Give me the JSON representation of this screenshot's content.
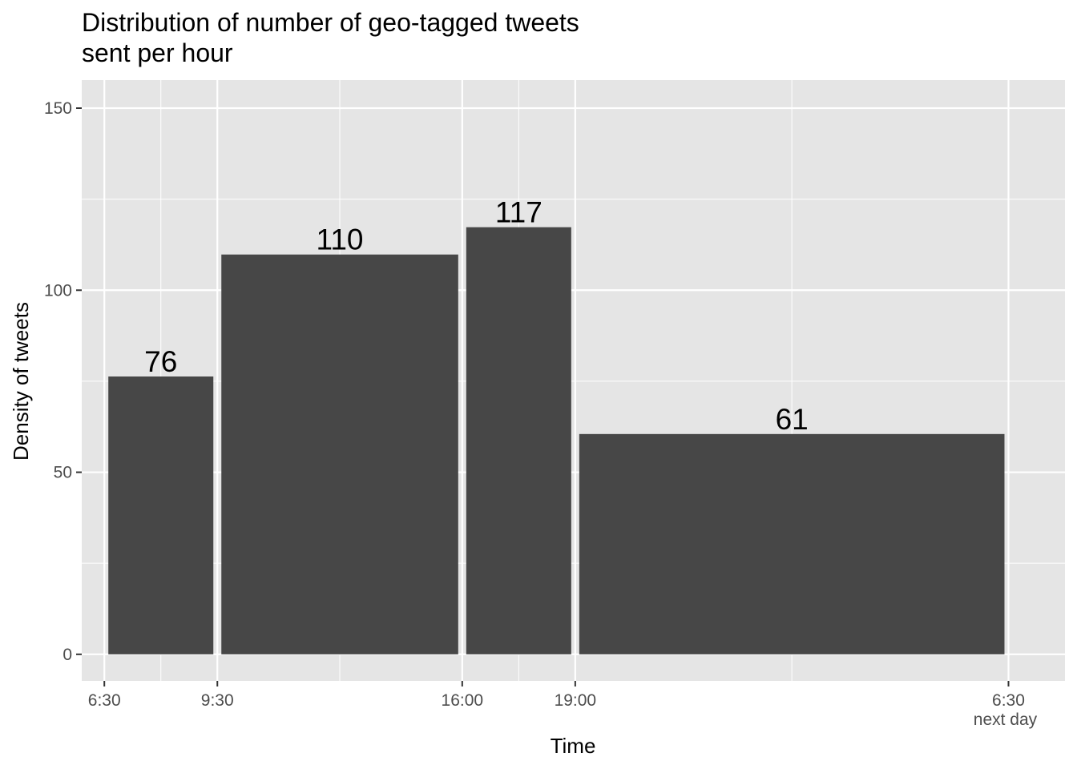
{
  "chart_data": {
    "type": "bar",
    "title_lines": [
      "Distribution of number of geo-tagged tweets",
      "sent per hour"
    ],
    "xlabel": "Time",
    "ylabel": "Density of tweets",
    "ylim": [
      -7.3,
      157.7
    ],
    "y_ticks": [
      0,
      50,
      100,
      150
    ],
    "x_ticks": [
      {
        "hour": 6.5,
        "label": "6:30",
        "sublabel": ""
      },
      {
        "hour": 9.5,
        "label": "9:30",
        "sublabel": ""
      },
      {
        "hour": 16.0,
        "label": "16:00",
        "sublabel": ""
      },
      {
        "hour": 19.0,
        "label": "19:00",
        "sublabel": ""
      },
      {
        "hour": 30.5,
        "label": "6:30",
        "sublabel": "next day"
      }
    ],
    "bars": [
      {
        "start": 6.5,
        "end": 9.5,
        "value": 76.3,
        "label": "76"
      },
      {
        "start": 9.5,
        "end": 16.0,
        "value": 109.8,
        "label": "110"
      },
      {
        "start": 16.0,
        "end": 19.0,
        "value": 117.3,
        "label": "117"
      },
      {
        "start": 19.0,
        "end": 30.5,
        "value": 60.5,
        "label": "61"
      }
    ],
    "grid": true,
    "colors": {
      "panel": "#e5e5e5",
      "grid": "#ffffff",
      "bar": "#474747"
    }
  }
}
